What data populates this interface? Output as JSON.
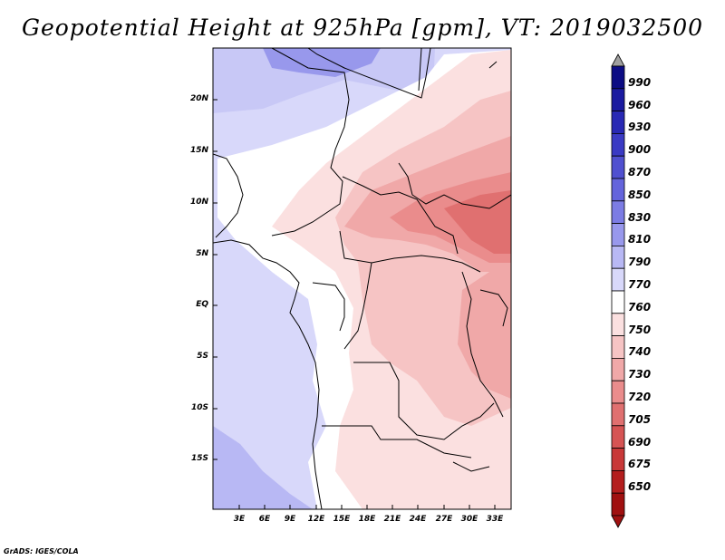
{
  "title": "Geopotential Height at 925hPa [gpm], VT: 2019032500",
  "map": {
    "lat_labels": [
      "20N",
      "15N",
      "10N",
      "5N",
      "EQ",
      "5S",
      "10S",
      "15S"
    ],
    "lon_labels": [
      "3E",
      "6E",
      "9E",
      "12E",
      "15E",
      "18E",
      "21E",
      "24E",
      "27E",
      "30E",
      "33E"
    ]
  },
  "colorbar": {
    "levels": [
      "990",
      "960",
      "930",
      "900",
      "870",
      "850",
      "830",
      "810",
      "790",
      "770",
      "760",
      "750",
      "740",
      "730",
      "720",
      "705",
      "690",
      "675",
      "650"
    ],
    "colors": [
      "#0c0c84",
      "#1a1aa0",
      "#2828b4",
      "#3a3ac4",
      "#5050d0",
      "#6464dc",
      "#7c7ce4",
      "#9898ec",
      "#b8b8f4",
      "#d8d8fa",
      "#ffffff",
      "#fbe0e0",
      "#f6c4c4",
      "#f0a8a8",
      "#ea8c8c",
      "#e07070",
      "#d65454",
      "#c83838",
      "#b41e1e",
      "#a01010"
    ],
    "top_arrow_color": "#a0a0a0",
    "bottom_arrow_color": "#a01010"
  },
  "credit": "GrADS: IGES/COLA"
}
